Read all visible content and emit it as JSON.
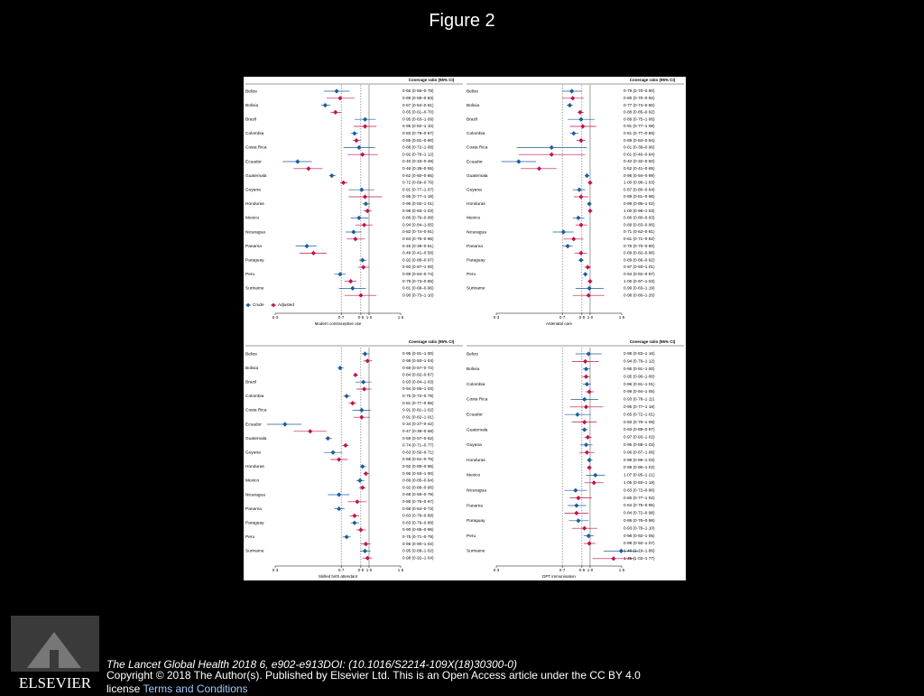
{
  "slide": {
    "title": "Figure 2",
    "citation": "The Lancet Global Health 2018 6, e902-e913DOI: (10.1016/S2214-109X(18)30300-0)",
    "copyright": "Copyright © 2018 The Author(s). Published by Elsevier Ltd. This is an Open Access article under the CC BY 4.0 license",
    "terms": "Terms and Conditions",
    "logo": "ELSEVIER"
  },
  "chart_data": [
    {
      "type": "forest",
      "header": "Coverage ratio (95% CI)",
      "xlabel": "Modern contraceptive use",
      "xscale": "log",
      "xlim": [
        0.3,
        1.5
      ],
      "xticks": [
        {
          "value": 0.3,
          "label": "0·3"
        },
        {
          "value": 0.7,
          "label": "0·7"
        },
        {
          "value": 0.9,
          "label": "0·9"
        },
        {
          "value": 1.0,
          "label": "1·0"
        },
        {
          "value": 1.5,
          "label": "1·5"
        }
      ],
      "reference_lines": [
        {
          "value": 0.7,
          "style": "dashed"
        },
        {
          "value": 0.9,
          "style": "dashed"
        },
        {
          "value": 1.0,
          "style": "solid"
        }
      ],
      "legend": true,
      "categories": [
        "Belize",
        "Bolivia",
        "Brazil",
        "Colombia",
        "Costa Rica",
        "Ecuador",
        "Guatemala",
        "Guyana",
        "Honduras",
        "Mexico",
        "Nicaragua",
        "Panama",
        "Paraguay",
        "Peru",
        "Suriname"
      ],
      "series": [
        {
          "name": "Crude",
          "color": "#1c5c9c",
          "values": [
            0.66,
            0.57,
            0.95,
            0.83,
            0.88,
            0.4,
            0.62,
            0.91,
            0.96,
            0.88,
            0.82,
            0.45,
            0.92,
            0.69,
            0.81
          ],
          "lower": [
            0.56,
            0.54,
            0.83,
            0.79,
            0.72,
            0.33,
            0.6,
            0.77,
            0.92,
            0.79,
            0.74,
            0.39,
            0.88,
            0.64,
            0.68
          ],
          "upper": [
            0.78,
            0.61,
            1.09,
            0.87,
            1.08,
            0.48,
            0.65,
            1.07,
            1.01,
            0.99,
            0.91,
            0.51,
            0.97,
            0.74,
            0.96
          ],
          "value_labels": [
            "0·66 (0·56–0·78)",
            "0·57 (0·54–0·61)",
            "0·95 (0·83–1·09)",
            "0·83 (0·79–0·87)",
            "0·88 (0·72–1·08)",
            "0·40 (0·33–0·48)",
            "0·62 (0·60–0·65)",
            "0·91 (0·77–1·07)",
            "0·96 (0·92–1·01)",
            "0·88 (0·79–0·99)",
            "0·82 (0·74–0·91)",
            "0·45 (0·39–0·51)",
            "0·92 (0·88–0·97)",
            "0·69 (0·64–0·74)",
            "0·81 (0·68–0·96)"
          ]
        },
        {
          "name": "Adjusted",
          "color": "#c0134c",
          "values": [
            0.69,
            0.65,
            0.95,
            0.85,
            0.92,
            0.46,
            0.72,
            0.95,
            0.98,
            0.94,
            0.84,
            0.49,
            0.93,
            0.79,
            0.9
          ],
          "lower": [
            0.58,
            0.61,
            0.82,
            0.81,
            0.76,
            0.38,
            0.69,
            0.77,
            0.93,
            0.84,
            0.75,
            0.41,
            0.87,
            0.73,
            0.73
          ],
          "upper": [
            0.83,
            0.7,
            1.1,
            0.9,
            1.12,
            0.55,
            0.76,
            1.18,
            1.03,
            1.05,
            0.95,
            0.58,
            1.0,
            0.85,
            1.1
          ],
          "value_labels": [
            "0·69 (0·58–0·83)",
            "0·65 (0·61–0·70)",
            "0·95 (0·82–1·10)",
            "0·85 (0·81–0·90)",
            "0·92 (0·76–1·12)",
            "0·46 (0·38–0·55)",
            "0·72 (0·69–0·76)",
            "0·95 (0·77–1·18)",
            "0·98 (0·93–1·03)",
            "0·94 (0·84–1·05)",
            "0·84 (0·75–0·95)",
            "0·49 (0·41–0·58)",
            "0·93 (0·87–1·00)",
            "0·79 (0·73–0·85)",
            "0·90 (0·73–1·10)"
          ]
        }
      ]
    },
    {
      "type": "forest",
      "header": "Coverage ratio (95% CI)",
      "xlabel": "Antenatal care",
      "xscale": "log",
      "xlim": [
        0.3,
        1.5
      ],
      "xticks": [
        {
          "value": 0.3,
          "label": "0·3"
        },
        {
          "value": 0.7,
          "label": "0·7"
        },
        {
          "value": 0.9,
          "label": "0·9"
        },
        {
          "value": 1.0,
          "label": "1·0"
        },
        {
          "value": 1.5,
          "label": "1·5"
        }
      ],
      "reference_lines": [
        {
          "value": 0.7,
          "style": "dashed"
        },
        {
          "value": 0.9,
          "style": "dashed"
        },
        {
          "value": 1.0,
          "style": "solid"
        }
      ],
      "legend": false,
      "categories": [
        "Belize",
        "Bolivia",
        "Brazil",
        "Colombia",
        "Costa Rica",
        "Ecuador",
        "Guatemala",
        "Guyana",
        "Honduras",
        "Mexico",
        "Nicaragua",
        "Panama",
        "Paraguay",
        "Peru",
        "Suriname"
      ],
      "series": [
        {
          "name": "Crude",
          "color": "#1c5c9c",
          "values": [
            0.79,
            0.77,
            0.89,
            0.81,
            0.61,
            0.4,
            0.96,
            0.87,
            0.99,
            0.86,
            0.71,
            0.75,
            0.89,
            0.94,
            0.99
          ],
          "lower": [
            0.7,
            0.74,
            0.75,
            0.77,
            0.39,
            0.32,
            0.94,
            0.8,
            0.96,
            0.8,
            0.62,
            0.7,
            0.86,
            0.92,
            0.83
          ],
          "upper": [
            0.9,
            0.8,
            1.06,
            0.86,
            0.96,
            0.5,
            0.99,
            0.94,
            1.02,
            0.93,
            0.81,
            0.8,
            0.92,
            0.97,
            1.19
          ],
          "value_labels": [
            "0·79 (0·70–0·90)",
            "0·77 (0·74–0·80)",
            "0·89 (0·75–1·06)",
            "0·81 (0·77–0·86)",
            "0·61 (0·39–0·96)",
            "0·40 (0·32–0·50)",
            "0·96 (0·94–0·99)",
            "0·87 (0·80–0·94)",
            "0·99 (0·96–1·02)",
            "0·86 (0·80–0·93)",
            "0·71 (0·62–0·81)",
            "0·75 (0·70–0·80)",
            "0·89 (0·86–0·92)",
            "0·94 (0·92–0·97)",
            "0·99 (0·83–1·19)"
          ]
        },
        {
          "name": "Adjusted",
          "color": "#c0134c",
          "values": [
            0.8,
            0.88,
            0.91,
            0.89,
            0.61,
            0.52,
            1.0,
            0.89,
            1.0,
            0.89,
            0.81,
            0.89,
            0.97,
            1.0,
            0.98
          ],
          "lower": [
            0.7,
            0.85,
            0.77,
            0.84,
            0.4,
            0.41,
            0.98,
            0.81,
            0.98,
            0.83,
            0.71,
            0.82,
            0.93,
            0.97,
            0.8
          ],
          "upper": [
            0.92,
            0.92,
            1.08,
            0.94,
            0.94,
            0.65,
            1.03,
            0.98,
            1.03,
            0.96,
            0.92,
            0.96,
            1.01,
            1.03,
            1.2
          ],
          "value_labels": [
            "0·80 (0·70–0·92)",
            "0·88 (0·85–0·92)",
            "0·91 (0·77–1·08)",
            "0·89 (0·84–0·94)",
            "0·61 (0·40–0·94)",
            "0·52 (0·41–0·65)",
            "1·00 (0·98–1·03)",
            "0·89 (0·81–0·98)",
            "1·00 (0·98–1·03)",
            "0·89 (0·83–0·96)",
            "0·81 (0·71–0·92)",
            "0·89 (0·82–0·96)",
            "0·97 (0·93–1·01)",
            "1·00 (0·97–1·03)",
            "0·98 (0·80–1·20)"
          ]
        }
      ]
    },
    {
      "type": "forest",
      "header": "Coverage ratio (95% CI)",
      "xlabel": "Skilled birth attendant",
      "xscale": "log",
      "xlim": [
        0.3,
        1.5
      ],
      "xticks": [
        {
          "value": 0.3,
          "label": "0·3"
        },
        {
          "value": 0.7,
          "label": "0·7"
        },
        {
          "value": 0.9,
          "label": "0·9"
        },
        {
          "value": 1.0,
          "label": "1·0"
        },
        {
          "value": 1.5,
          "label": "1·5"
        }
      ],
      "reference_lines": [
        {
          "value": 0.7,
          "style": "dashed"
        },
        {
          "value": 0.9,
          "style": "dashed"
        },
        {
          "value": 1.0,
          "style": "solid"
        }
      ],
      "legend": false,
      "categories": [
        "Belize",
        "Bolivia",
        "Brazil",
        "Colombia",
        "Costa Rica",
        "Ecuador",
        "Guatemala",
        "Guyana",
        "Honduras",
        "Mexico",
        "Nicaragua",
        "Panama",
        "Paraguay",
        "Peru",
        "Suriname"
      ],
      "series": [
        {
          "name": "Crude",
          "color": "#1c5c9c",
          "values": [
            0.95,
            0.69,
            0.93,
            0.75,
            0.91,
            0.34,
            0.59,
            0.63,
            0.92,
            0.89,
            0.68,
            0.68,
            0.83,
            0.75,
            0.95
          ],
          "lower": [
            0.91,
            0.67,
            0.84,
            0.72,
            0.81,
            0.27,
            0.57,
            0.56,
            0.89,
            0.85,
            0.59,
            0.64,
            0.79,
            0.71,
            0.89
          ],
          "upper": [
            1.0,
            0.72,
            1.03,
            0.79,
            1.02,
            0.42,
            0.62,
            0.71,
            0.96,
            0.94,
            0.78,
            0.73,
            0.88,
            0.79,
            1.02
          ],
          "value_labels": [
            "0·95 (0·91–1·00)",
            "0·69 (0·67–0·72)",
            "0·93 (0·84–1·03)",
            "0·75 (0·72–0·79)",
            "0·91 (0·81–1·02)",
            "0·34 (0·27–0·42)",
            "0·59 (0·57–0·62)",
            "0·63 (0·56–0·71)",
            "0·92 (0·89–0·96)",
            "0·89 (0·85–0·94)",
            "0·68 (0·59–0·78)",
            "0·68 (0·64–0·73)",
            "0·83 (0·79–0·88)",
            "0·75 (0·71–0·79)",
            "0·95 (0·89–1·02)"
          ]
        },
        {
          "name": "Adjusted",
          "color": "#c0134c",
          "values": [
            0.98,
            0.84,
            0.94,
            0.81,
            0.91,
            0.47,
            0.74,
            0.68,
            0.96,
            0.92,
            0.86,
            0.83,
            0.9,
            0.96,
            0.98
          ],
          "lower": [
            0.93,
            0.82,
            0.85,
            0.77,
            0.82,
            0.38,
            0.71,
            0.61,
            0.93,
            0.88,
            0.76,
            0.78,
            0.85,
            0.9,
            0.92
          ],
          "upper": [
            1.04,
            0.87,
            1.03,
            0.85,
            1.01,
            0.58,
            0.77,
            0.76,
            1.0,
            0.96,
            0.97,
            0.88,
            0.96,
            1.02,
            1.04
          ],
          "value_labels": [
            "0·98 (0·93–1·04)",
            "0·84 (0·82–0·87)",
            "0·94 (0·85–1·03)",
            "0·81 (0·77–0·85)",
            "0·91 (0·82–1·01)",
            "0·47 (0·38–0·58)",
            "0·74 (0·71–0·77)",
            "0·68 (0·61–0·76)",
            "0·96 (0·93–1·00)",
            "0·92 (0·88–0·96)",
            "0·86 (0·76–0·97)",
            "0·83 (0·78–0·88)",
            "0·90 (0·85–0·96)",
            "0·96 (0·90–1·02)",
            "0·98 (0·92–1·04)"
          ]
        }
      ]
    },
    {
      "type": "forest",
      "header": "Coverage ratio (95% CI)",
      "xlabel": "DPT immunisation",
      "xscale": "log",
      "xlim": [
        0.3,
        1.5
      ],
      "xticks": [
        {
          "value": 0.3,
          "label": "0·3"
        },
        {
          "value": 0.7,
          "label": "0·7"
        },
        {
          "value": 0.9,
          "label": "0·9"
        },
        {
          "value": 1.0,
          "label": "1·0"
        },
        {
          "value": 1.5,
          "label": "1·5"
        }
      ],
      "reference_lines": [
        {
          "value": 0.7,
          "style": "dashed"
        },
        {
          "value": 0.9,
          "style": "dashed"
        },
        {
          "value": 1.0,
          "style": "solid"
        }
      ],
      "legend": false,
      "categories": [
        "Belize",
        "Bolivia",
        "Colombia",
        "Costa Rica",
        "Ecuador",
        "Guatemala",
        "Guyana",
        "Honduras",
        "Mexico",
        "Nicaragua",
        "Panama",
        "Paraguay",
        "Peru",
        "Suriname"
      ],
      "series": [
        {
          "name": "Crude",
          "color": "#1c5c9c",
          "values": [
            0.98,
            0.95,
            0.96,
            0.93,
            0.85,
            0.93,
            0.95,
            0.99,
            1.07,
            0.83,
            0.84,
            0.86,
            0.98,
            1.49
          ],
          "lower": [
            0.83,
            0.91,
            0.91,
            0.78,
            0.72,
            0.89,
            0.88,
            0.96,
            0.95,
            0.72,
            0.75,
            0.76,
            0.92,
            1.19
          ],
          "upper": [
            1.16,
            1.0,
            1.01,
            1.11,
            1.01,
            0.97,
            1.03,
            1.03,
            1.21,
            0.96,
            0.95,
            0.98,
            1.05,
            1.86
          ],
          "value_labels": [
            "0·98 (0·83–1·16)",
            "0·95 (0·91–1·00)",
            "0·96 (0·91–1·01)",
            "0·93 (0·78–1·11)",
            "0·85 (0·72–1·01)",
            "0·93 (0·89–0·97)",
            "0·95 (0·88–1·03)",
            "0·99 (0·96–1·03)",
            "1·07 (0·95–1·21)",
            "0·83 (0·72–0·96)",
            "0·84 (0·75–0·95)",
            "0·86 (0·76–0·98)",
            "0·98 (0·92–1·05)",
            "1·49 (1·19–1·86)"
          ]
        },
        {
          "name": "Adjusted",
          "color": "#c0134c",
          "values": [
            0.94,
            0.95,
            0.99,
            0.95,
            0.93,
            0.97,
            0.96,
            0.99,
            1.05,
            0.86,
            0.84,
            0.93,
            0.99,
            1.35
          ],
          "lower": [
            0.79,
            0.9,
            0.94,
            0.77,
            0.79,
            0.93,
            0.87,
            0.96,
            0.93,
            0.77,
            0.72,
            0.79,
            0.92,
            1.03
          ],
          "upper": [
            1.12,
            1.0,
            1.05,
            1.18,
            1.09,
            1.02,
            1.06,
            1.02,
            1.19,
            1.02,
            0.98,
            1.1,
            1.07,
            1.77
          ],
          "value_labels": [
            "0·94 (0·79–1·12)",
            "0·95 (0·90–1·00)",
            "0·99 (0·94–1·05)",
            "0·95 (0·77–1·18)",
            "0·93 (0·79–1·09)",
            "0·97 (0·93–1·02)",
            "0·96 (0·87–1·06)",
            "0·99 (0·96–1·02)",
            "1·05 (0·93–1·19)",
            "0·86 (0·77–1·02)",
            "0·84 (0·72–0·98)",
            "0·93 (0·79–1·10)",
            "0·99 (0·92–1·07)",
            "1·35 (1·03–1·77)"
          ]
        }
      ]
    }
  ]
}
